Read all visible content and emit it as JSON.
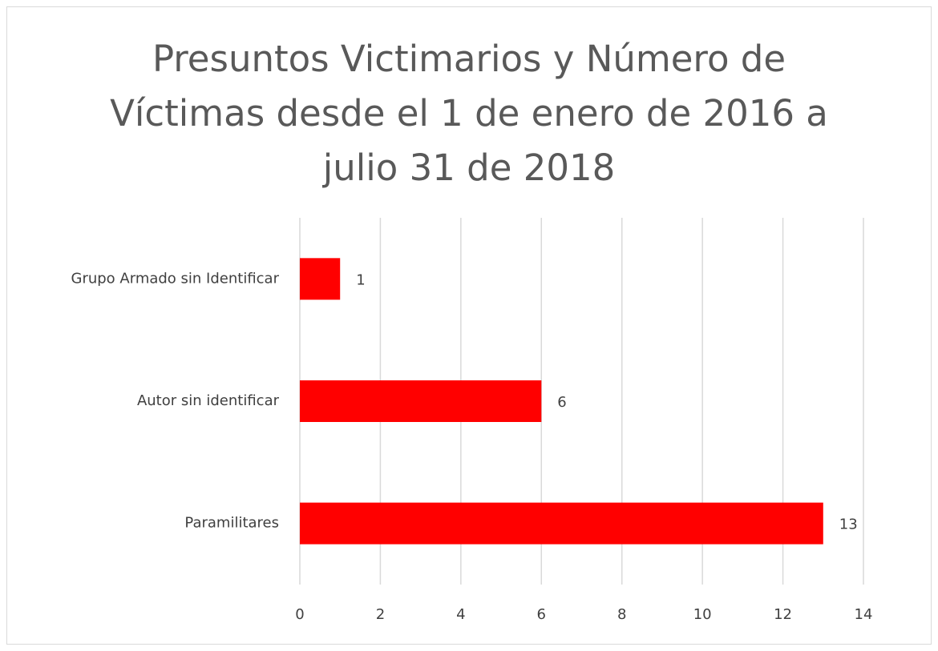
{
  "chart_data": {
    "type": "bar",
    "orientation": "horizontal",
    "title": "Presuntos Victimarios y Número de Víctimas desde el 1 de enero de 2016 a julio 31 de 2018",
    "categories": [
      "Grupo Armado sin Identificar",
      "Autor sin identificar",
      "Paramilitares"
    ],
    "values": [
      1,
      6,
      13
    ],
    "color": "#ff0000",
    "xlim": [
      0,
      14
    ],
    "xticks": [
      0,
      2,
      4,
      6,
      8,
      10,
      12,
      14
    ],
    "grid": true
  }
}
